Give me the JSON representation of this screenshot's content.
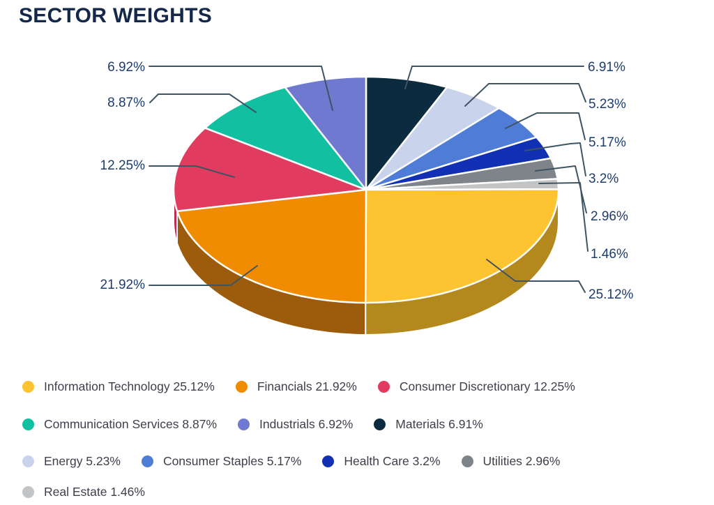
{
  "title": "SECTOR WEIGHTS",
  "chart_data": {
    "type": "pie",
    "style": "3d",
    "title": "SECTOR WEIGHTS",
    "unit": "%",
    "legend_position": "bottom",
    "categories": [
      "Information Technology",
      "Financials",
      "Consumer Discretionary",
      "Communication Services",
      "Industrials",
      "Materials",
      "Energy",
      "Consumer Staples",
      "Health Care",
      "Utilities",
      "Real Estate"
    ],
    "values": [
      25.12,
      21.92,
      12.25,
      8.87,
      6.92,
      6.91,
      5.23,
      5.17,
      3.2,
      2.96,
      1.46
    ],
    "labels": [
      "25.12%",
      "21.92%",
      "12.25%",
      "8.87%",
      "6.92%",
      "6.91%",
      "5.23%",
      "5.17%",
      "3.2%",
      "2.96%",
      "1.46%"
    ],
    "colors": [
      "#FDC330",
      "#F18C00",
      "#E13C60",
      "#12C0A1",
      "#6F79D0",
      "#0D2B3E",
      "#C9D4EC",
      "#4E7CD6",
      "#1130B4",
      "#7E8489",
      "#C3C4C6"
    ],
    "side_colors": {
      "Information Technology": "#B3891D",
      "Financials": "#9D5C0B",
      "Consumer Discretionary": "#C22950"
    },
    "legend_rows": [
      [
        0,
        1,
        2
      ],
      [
        3,
        4,
        5
      ],
      [
        6,
        7,
        8,
        9
      ],
      [
        10
      ]
    ]
  }
}
